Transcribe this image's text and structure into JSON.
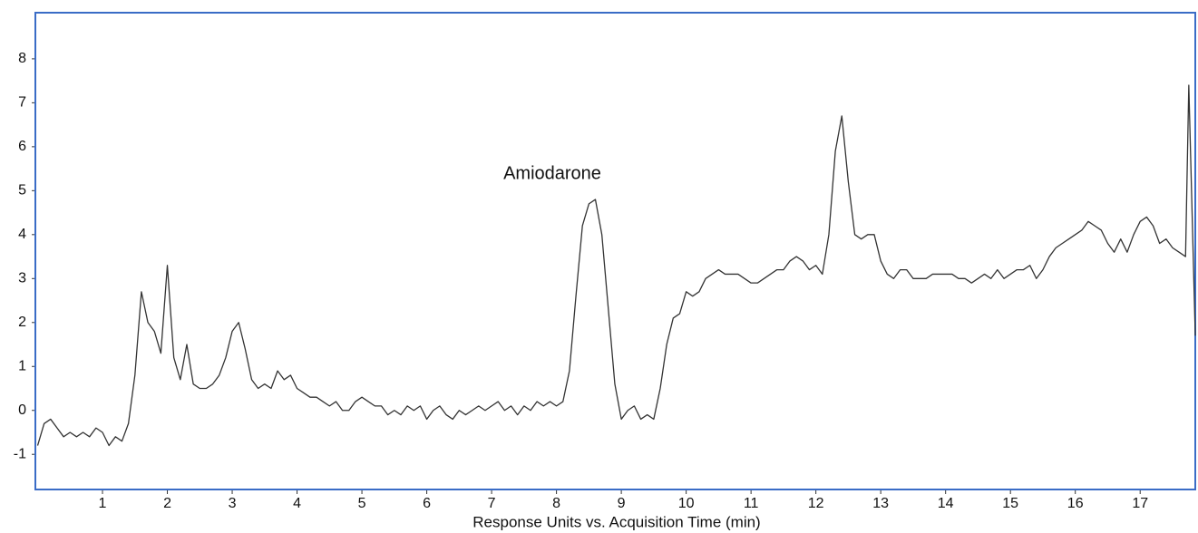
{
  "chart_data": {
    "type": "line",
    "x_label": "Response Units vs. Acquisition Time (min)",
    "annotation": "Amiodarone",
    "xlim": [
      -0.035,
      17.85
    ],
    "ylim": [
      -1.8,
      9.05
    ],
    "xticks": [
      1,
      2,
      3,
      4,
      5,
      6,
      7,
      8,
      9,
      10,
      11,
      12,
      13,
      14,
      15,
      16,
      17
    ],
    "yticks": [
      -1,
      0,
      1,
      2,
      3,
      4,
      5,
      6,
      7,
      8
    ],
    "color": "#333333",
    "frame_color": "#3a6cc6",
    "x": [
      0.0,
      0.1,
      0.2,
      0.3,
      0.4,
      0.5,
      0.6,
      0.7,
      0.8,
      0.9,
      1.0,
      1.1,
      1.2,
      1.3,
      1.4,
      1.5,
      1.6,
      1.7,
      1.8,
      1.9,
      2.0,
      2.1,
      2.2,
      2.3,
      2.4,
      2.5,
      2.6,
      2.7,
      2.8,
      2.9,
      3.0,
      3.1,
      3.2,
      3.3,
      3.4,
      3.5,
      3.6,
      3.7,
      3.8,
      3.9,
      4.0,
      4.1,
      4.2,
      4.3,
      4.4,
      4.5,
      4.6,
      4.7,
      4.8,
      4.9,
      5.0,
      5.1,
      5.2,
      5.3,
      5.4,
      5.5,
      5.6,
      5.7,
      5.8,
      5.9,
      6.0,
      6.1,
      6.2,
      6.3,
      6.4,
      6.5,
      6.6,
      6.7,
      6.8,
      6.9,
      7.0,
      7.1,
      7.2,
      7.3,
      7.4,
      7.5,
      7.6,
      7.7,
      7.8,
      7.9,
      8.0,
      8.1,
      8.2,
      8.3,
      8.4,
      8.5,
      8.6,
      8.7,
      8.8,
      8.9,
      9.0,
      9.1,
      9.2,
      9.3,
      9.4,
      9.5,
      9.6,
      9.7,
      9.8,
      9.9,
      10.0,
      10.1,
      10.2,
      10.3,
      10.4,
      10.5,
      10.6,
      10.7,
      10.8,
      10.9,
      11.0,
      11.1,
      11.2,
      11.3,
      11.4,
      11.5,
      11.6,
      11.7,
      11.8,
      11.9,
      12.0,
      12.1,
      12.2,
      12.3,
      12.4,
      12.5,
      12.6,
      12.7,
      12.8,
      12.9,
      13.0,
      13.1,
      13.2,
      13.3,
      13.4,
      13.5,
      13.6,
      13.7,
      13.8,
      13.9,
      14.0,
      14.1,
      14.2,
      14.3,
      14.4,
      14.5,
      14.6,
      14.7,
      14.8,
      14.9,
      15.0,
      15.1,
      15.2,
      15.3,
      15.4,
      15.5,
      15.6,
      15.7,
      15.8,
      15.9,
      16.0,
      16.1,
      16.2,
      16.3,
      16.4,
      16.5,
      16.6,
      16.7,
      16.8,
      16.9,
      17.0,
      17.1,
      17.2,
      17.3,
      17.4,
      17.5,
      17.6,
      17.7,
      17.75,
      17.85
    ],
    "values": [
      -0.8,
      -0.3,
      -0.2,
      -0.4,
      -0.6,
      -0.5,
      -0.6,
      -0.5,
      -0.6,
      -0.4,
      -0.5,
      -0.8,
      -0.6,
      -0.7,
      -0.3,
      0.8,
      2.7,
      2.0,
      1.8,
      1.3,
      3.3,
      1.2,
      0.7,
      1.5,
      0.6,
      0.5,
      0.5,
      0.6,
      0.8,
      1.2,
      1.8,
      2.0,
      1.4,
      0.7,
      0.5,
      0.6,
      0.5,
      0.9,
      0.7,
      0.8,
      0.5,
      0.4,
      0.3,
      0.3,
      0.2,
      0.1,
      0.2,
      0.0,
      0.0,
      0.2,
      0.3,
      0.2,
      0.1,
      0.1,
      -0.1,
      0.0,
      -0.1,
      0.1,
      0.0,
      0.1,
      -0.2,
      0.0,
      0.1,
      -0.1,
      -0.2,
      0.0,
      -0.1,
      0.0,
      0.1,
      0.0,
      0.1,
      0.2,
      0.0,
      0.1,
      -0.1,
      0.1,
      0.0,
      0.2,
      0.1,
      0.2,
      0.1,
      0.2,
      0.9,
      2.6,
      4.2,
      4.7,
      4.8,
      4.0,
      2.3,
      0.6,
      -0.2,
      0.0,
      0.1,
      -0.2,
      -0.1,
      -0.2,
      0.5,
      1.5,
      2.1,
      2.2,
      2.7,
      2.6,
      2.7,
      3.0,
      3.1,
      3.2,
      3.1,
      3.1,
      3.1,
      3.0,
      2.9,
      2.9,
      3.0,
      3.1,
      3.2,
      3.2,
      3.4,
      3.5,
      3.4,
      3.2,
      3.3,
      3.1,
      4.0,
      5.9,
      6.7,
      5.2,
      4.0,
      3.9,
      4.0,
      4.0,
      3.4,
      3.1,
      3.0,
      3.2,
      3.2,
      3.0,
      3.0,
      3.0,
      3.1,
      3.1,
      3.1,
      3.1,
      3.0,
      3.0,
      2.9,
      3.0,
      3.1,
      3.0,
      3.2,
      3.0,
      3.1,
      3.2,
      3.2,
      3.3,
      3.0,
      3.2,
      3.5,
      3.7,
      3.8,
      3.9,
      4.0,
      4.1,
      4.3,
      4.2,
      4.1,
      3.8,
      3.6,
      3.9,
      3.6,
      4.0,
      4.3,
      4.4,
      4.2,
      3.8,
      3.9,
      3.7,
      3.6,
      3.5,
      7.4,
      1.7
    ]
  }
}
